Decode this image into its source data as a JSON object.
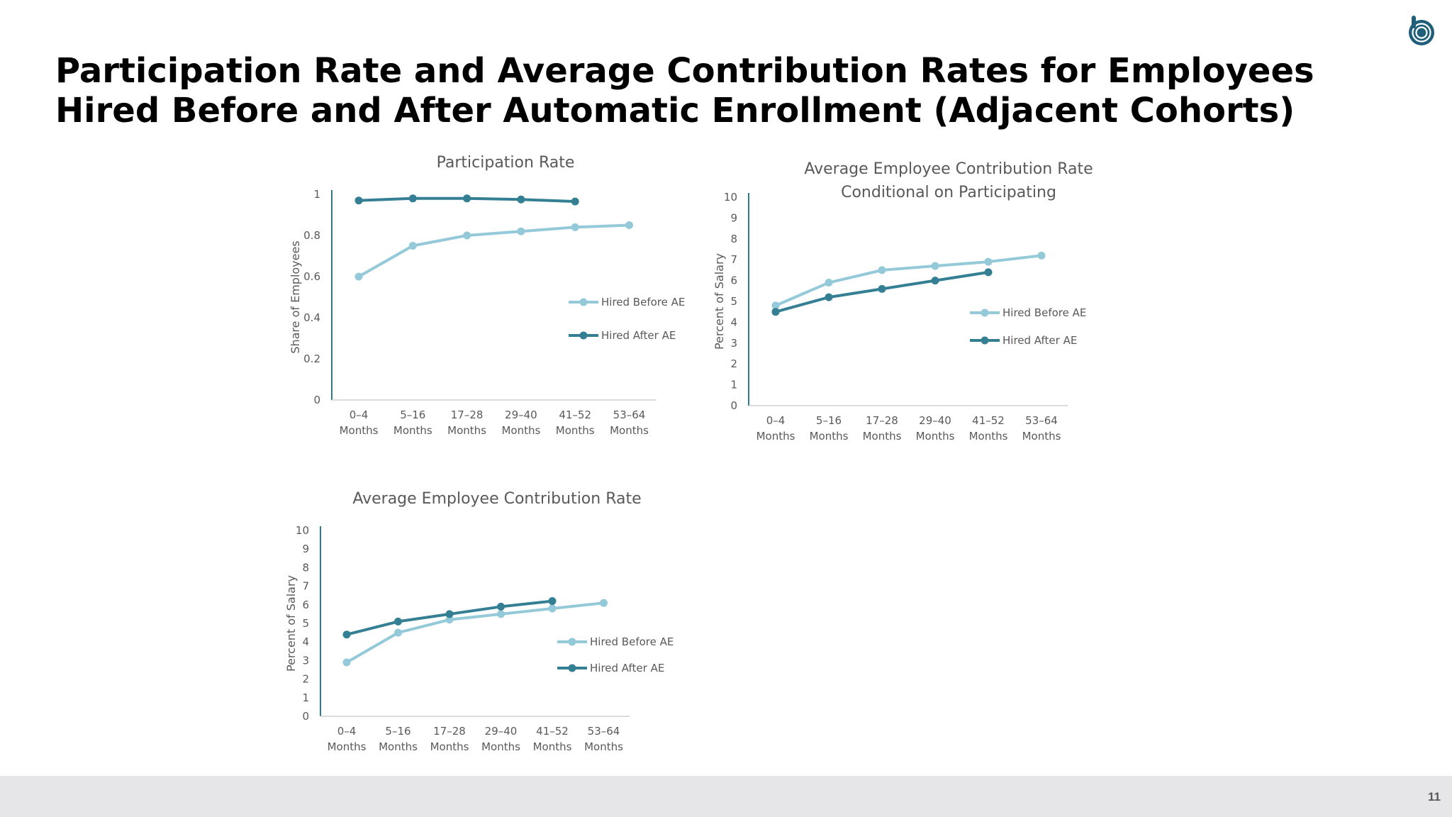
{
  "slide": {
    "title_line1": "Participation Rate and Average Contribution Rates for Employees",
    "title_line2": "Hired Before and After Automatic Enrollment (Adjacent Cohorts)",
    "page_number": "11"
  },
  "colors": {
    "before": "#93c9d8",
    "after": "#347f93",
    "axis": "#2e7b90",
    "text": "#595959"
  },
  "chart_data": [
    {
      "id": "participation",
      "type": "line",
      "title": [
        "Participation Rate"
      ],
      "ylabel": "Share of Employees",
      "xlabel": "",
      "ylim": [
        0,
        1
      ],
      "yticks": [
        "0",
        "0.2",
        "0.4",
        "0.6",
        "0.8",
        "1"
      ],
      "ytick_values": [
        0,
        0.2,
        0.4,
        0.6,
        0.8,
        1
      ],
      "categories": [
        [
          "0–4",
          "Months"
        ],
        [
          "5–16",
          "Months"
        ],
        [
          "17–28",
          "Months"
        ],
        [
          "29–40",
          "Months"
        ],
        [
          "41–52",
          "Months"
        ],
        [
          "53–64",
          "Months"
        ]
      ],
      "grid": false,
      "legend_position": "right",
      "series": [
        {
          "name": "Hired Before AE",
          "color": "before",
          "values": [
            0.6,
            0.75,
            0.8,
            0.82,
            0.84,
            0.85
          ]
        },
        {
          "name": "Hired After AE",
          "color": "after",
          "values": [
            0.97,
            0.98,
            0.98,
            0.975,
            0.965,
            null
          ]
        }
      ]
    },
    {
      "id": "contrib-conditional",
      "type": "line",
      "title": [
        "Average Employee Contribution Rate",
        "Conditional on Participating"
      ],
      "ylabel": "Percent of Salary",
      "xlabel": "",
      "ylim": [
        0,
        10
      ],
      "yticks": [
        "0",
        "1",
        "2",
        "3",
        "4",
        "5",
        "6",
        "7",
        "8",
        "9",
        "10"
      ],
      "ytick_values": [
        0,
        1,
        2,
        3,
        4,
        5,
        6,
        7,
        8,
        9,
        10
      ],
      "categories": [
        [
          "0–4",
          "Months"
        ],
        [
          "5–16",
          "Months"
        ],
        [
          "17–28",
          "Months"
        ],
        [
          "29–40",
          "Months"
        ],
        [
          "41–52",
          "Months"
        ],
        [
          "53–64",
          "Months"
        ]
      ],
      "grid": false,
      "legend_position": "right",
      "series": [
        {
          "name": "Hired Before AE",
          "color": "before",
          "values": [
            4.8,
            5.9,
            6.5,
            6.7,
            6.9,
            7.2
          ]
        },
        {
          "name": "Hired After AE",
          "color": "after",
          "values": [
            4.5,
            5.2,
            5.6,
            6.0,
            6.4,
            null
          ]
        }
      ]
    },
    {
      "id": "contrib-average",
      "type": "line",
      "title": [
        "Average Employee Contribution Rate"
      ],
      "ylabel": "Percent of Salary",
      "xlabel": "",
      "ylim": [
        0,
        10
      ],
      "yticks": [
        "0",
        "1",
        "2",
        "3",
        "4",
        "5",
        "6",
        "7",
        "8",
        "9",
        "10"
      ],
      "ytick_values": [
        0,
        1,
        2,
        3,
        4,
        5,
        6,
        7,
        8,
        9,
        10
      ],
      "categories": [
        [
          "0–4",
          "Months"
        ],
        [
          "5–16",
          "Months"
        ],
        [
          "17–28",
          "Months"
        ],
        [
          "29–40",
          "Months"
        ],
        [
          "41–52",
          "Months"
        ],
        [
          "53–64",
          "Months"
        ]
      ],
      "grid": false,
      "legend_position": "right",
      "series": [
        {
          "name": "Hired Before AE",
          "color": "before",
          "values": [
            2.9,
            4.5,
            5.2,
            5.5,
            5.8,
            6.1
          ]
        },
        {
          "name": "Hired After AE",
          "color": "after",
          "values": [
            4.4,
            5.1,
            5.5,
            5.9,
            6.2,
            null
          ]
        }
      ]
    }
  ]
}
